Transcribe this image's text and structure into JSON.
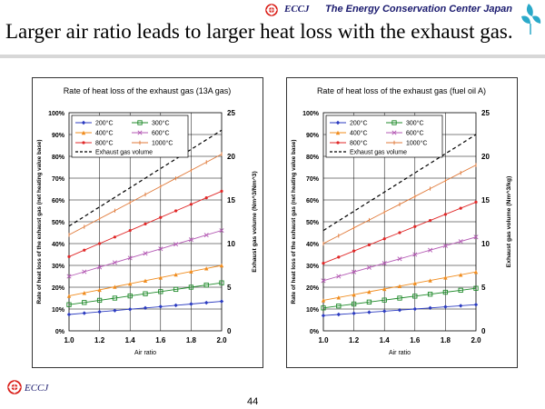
{
  "header": {
    "org_short": "ECCJ",
    "org_name": "The Energy Conservation Center Japan",
    "slide_title": "Larger air ratio leads to larger heat loss with the exhaust gas."
  },
  "footer": {
    "org_short": "ECCJ",
    "page_number": "44"
  },
  "colors": {
    "brand": "#d91e18",
    "navy": "#1a1a6e",
    "200": "#2b3bc0",
    "300": "#1f8a2a",
    "400": "#f08c1e",
    "600": "#b45ab4",
    "800": "#e02828",
    "1000": "#e07a3a",
    "exhaust": "#000000"
  },
  "chart_data": [
    {
      "type": "line",
      "title": "Rate of heat loss of the exhaust gas (13A gas)",
      "xlabel": "Air ratio",
      "ylabel": "Rate of heat loss of the exhaust gas (net heating value base)",
      "y2label": "Exhaust gas volume (Nm^3/Nm^3)",
      "xlim": [
        1.0,
        2.0
      ],
      "ylim": [
        0,
        100
      ],
      "y2lim": [
        0,
        25
      ],
      "x_ticks": [
        "1.0",
        "1.2",
        "1.4",
        "1.6",
        "1.8",
        "2.0"
      ],
      "y_ticks": [
        "0%",
        "10%",
        "20%",
        "30%",
        "40%",
        "50%",
        "60%",
        "70%",
        "80%",
        "90%",
        "100%"
      ],
      "y2_ticks": [
        "0",
        "5",
        "10",
        "15",
        "20",
        "25"
      ],
      "grid": true,
      "legend_position": "top-left",
      "x": [
        1.0,
        1.1,
        1.2,
        1.3,
        1.4,
        1.5,
        1.6,
        1.7,
        1.8,
        1.9,
        2.0
      ],
      "series": [
        {
          "name": "200°C",
          "key": "200",
          "axis": "left",
          "values": [
            7.5,
            8.1,
            8.7,
            9.3,
            9.9,
            10.5,
            11.1,
            11.7,
            12.3,
            12.9,
            13.5
          ]
        },
        {
          "name": "300°C",
          "key": "300",
          "axis": "left",
          "values": [
            12.0,
            13.0,
            14.0,
            15.0,
            16.0,
            17.0,
            18.0,
            19.0,
            20.0,
            21.0,
            22.0
          ]
        },
        {
          "name": "400°C",
          "key": "400",
          "axis": "left",
          "values": [
            16.0,
            17.4,
            18.8,
            20.2,
            21.6,
            23.0,
            24.4,
            25.8,
            27.2,
            28.6,
            30.0
          ]
        },
        {
          "name": "600°C",
          "key": "600",
          "axis": "left",
          "values": [
            25.0,
            27.1,
            29.2,
            31.3,
            33.4,
            35.5,
            37.6,
            39.7,
            41.8,
            43.9,
            46.0
          ]
        },
        {
          "name": "800°C",
          "key": "800",
          "axis": "left",
          "values": [
            34.0,
            37.0,
            40.0,
            43.0,
            46.0,
            49.0,
            52.0,
            55.0,
            58.0,
            61.0,
            64.0
          ]
        },
        {
          "name": "1000°C",
          "key": "1000",
          "axis": "left",
          "values": [
            44.0,
            47.7,
            51.4,
            55.1,
            58.8,
            62.5,
            66.2,
            69.9,
            73.6,
            77.3,
            81.0
          ]
        },
        {
          "name": "Exhaust gas volume",
          "key": "exhaust",
          "axis": "right",
          "dashed": true,
          "values": [
            12.0,
            13.1,
            14.2,
            15.3,
            16.4,
            17.5,
            18.6,
            19.7,
            20.8,
            21.9,
            23.0
          ]
        }
      ]
    },
    {
      "type": "line",
      "title": "Rate of heat loss of the exhaust gas (fuel oil A)",
      "xlabel": "Air ratio",
      "ylabel": "Rate of heat loss of the exhaust gas (net heating value base)",
      "y2label": "Exhaust gas volume (Nm^3/kg)",
      "xlim": [
        1.0,
        2.0
      ],
      "ylim": [
        0,
        100
      ],
      "y2lim": [
        0,
        25
      ],
      "x_ticks": [
        "1.0",
        "1.2",
        "1.4",
        "1.6",
        "1.8",
        "2.0"
      ],
      "y_ticks": [
        "0%",
        "10%",
        "20%",
        "30%",
        "40%",
        "50%",
        "60%",
        "70%",
        "80%",
        "90%",
        "100%"
      ],
      "y2_ticks": [
        "0",
        "5",
        "10",
        "15",
        "20",
        "25"
      ],
      "grid": true,
      "legend_position": "top-left",
      "x": [
        1.0,
        1.1,
        1.2,
        1.3,
        1.4,
        1.5,
        1.6,
        1.7,
        1.8,
        1.9,
        2.0
      ],
      "series": [
        {
          "name": "200°C",
          "key": "200",
          "axis": "left",
          "values": [
            7.0,
            7.5,
            8.0,
            8.5,
            9.0,
            9.5,
            10.0,
            10.5,
            11.0,
            11.5,
            12.0
          ]
        },
        {
          "name": "300°C",
          "key": "300",
          "axis": "left",
          "values": [
            10.5,
            11.4,
            12.3,
            13.2,
            14.1,
            15.0,
            15.9,
            16.8,
            17.7,
            18.6,
            19.5
          ]
        },
        {
          "name": "400°C",
          "key": "400",
          "axis": "left",
          "values": [
            14.0,
            15.3,
            16.6,
            17.9,
            19.2,
            20.5,
            21.8,
            23.1,
            24.4,
            25.7,
            27.0
          ]
        },
        {
          "name": "600°C",
          "key": "600",
          "axis": "left",
          "values": [
            23.0,
            25.0,
            27.0,
            29.0,
            31.0,
            33.0,
            35.0,
            37.0,
            39.0,
            41.0,
            43.0
          ]
        },
        {
          "name": "800°C",
          "key": "800",
          "axis": "left",
          "values": [
            31.0,
            33.8,
            36.6,
            39.4,
            42.2,
            45.0,
            47.8,
            50.6,
            53.4,
            56.2,
            59.0
          ]
        },
        {
          "name": "1000°C",
          "key": "1000",
          "axis": "left",
          "values": [
            40.0,
            43.6,
            47.2,
            50.8,
            54.4,
            58.0,
            61.6,
            65.2,
            68.8,
            72.4,
            76.0
          ]
        },
        {
          "name": "Exhaust gas volume",
          "key": "exhaust",
          "axis": "right",
          "dashed": true,
          "values": [
            11.5,
            12.6,
            13.7,
            14.8,
            15.9,
            17.0,
            18.1,
            19.2,
            20.3,
            21.4,
            22.5
          ]
        }
      ]
    }
  ]
}
